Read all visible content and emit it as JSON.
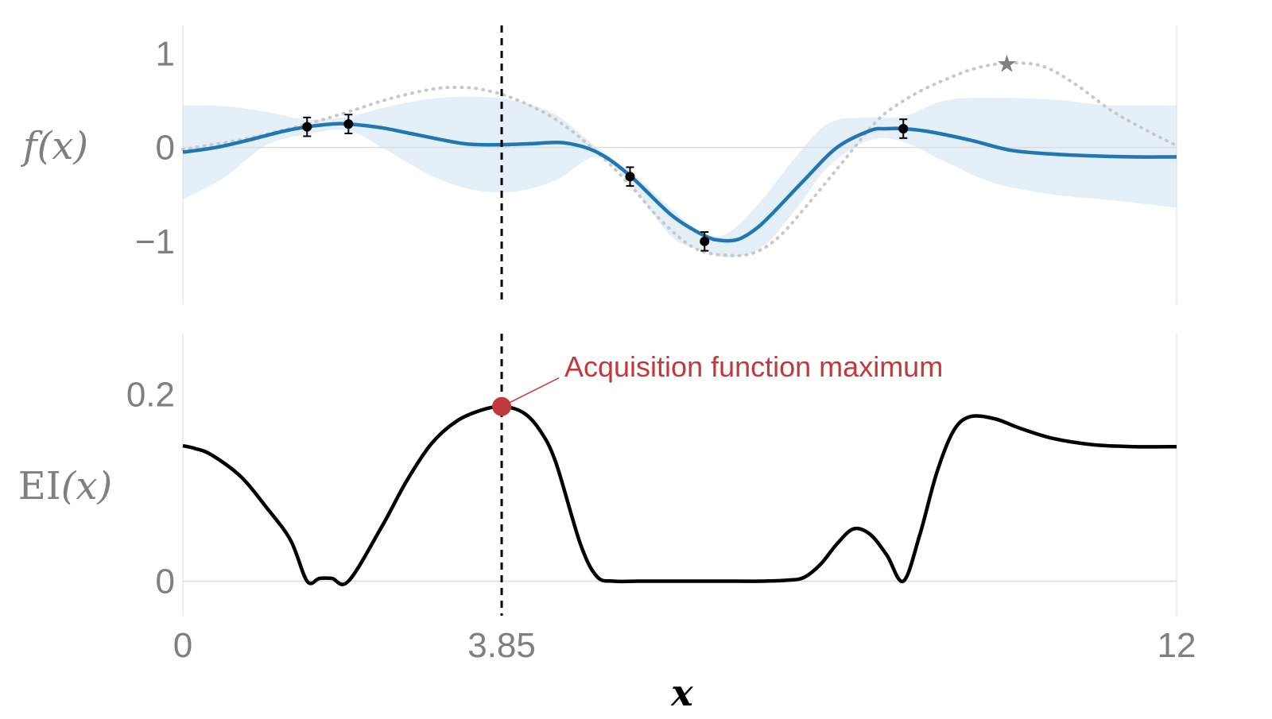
{
  "chart_data": [
    {
      "type": "line",
      "panel": "top",
      "ylabel": "f(x)",
      "xlim": [
        0,
        12
      ],
      "ylim": [
        -1.67,
        1.3
      ],
      "yticks": [
        1,
        0,
        -1
      ],
      "ytick_labels": [
        "1",
        "0",
        "−1"
      ],
      "grid": "zero line only",
      "series": [
        {
          "role": "posterior-mean",
          "color": "#1f77b4",
          "x": [
            0,
            0.4,
            0.8,
            1.2,
            1.5,
            1.8,
            2.0,
            2.4,
            2.8,
            3.4,
            3.85,
            4.2,
            4.6,
            5.0,
            5.4,
            5.9,
            6.3,
            6.5,
            6.7,
            6.9,
            7.1,
            7.5,
            7.9,
            8.3,
            8.5,
            8.7,
            9.0,
            9.5,
            10.0,
            10.5,
            11.0,
            11.5,
            12.0
          ],
          "y": [
            -0.05,
            0.0,
            0.08,
            0.17,
            0.22,
            0.25,
            0.25,
            0.21,
            0.14,
            0.04,
            0.03,
            0.04,
            0.05,
            -0.05,
            -0.3,
            -0.72,
            -0.94,
            -0.99,
            -0.98,
            -0.88,
            -0.72,
            -0.35,
            0.0,
            0.18,
            0.2,
            0.2,
            0.17,
            0.08,
            -0.03,
            -0.07,
            -0.09,
            -0.1,
            -0.1
          ]
        },
        {
          "role": "true-function",
          "color": "#c8c8c8",
          "style": "dotted",
          "x": [
            0,
            0.8,
            1.5,
            2.0,
            2.5,
            3.0,
            3.3,
            3.6,
            4.0,
            4.5,
            5.0,
            5.4,
            5.8,
            6.2,
            6.6,
            6.9,
            7.2,
            7.6,
            8.0,
            8.4,
            8.8,
            9.2,
            9.6,
            10.0,
            10.4,
            10.8,
            11.2,
            11.6,
            12.0
          ],
          "y": [
            -0.02,
            0.1,
            0.25,
            0.38,
            0.52,
            0.62,
            0.64,
            0.62,
            0.52,
            0.3,
            -0.05,
            -0.4,
            -0.8,
            -1.08,
            -1.15,
            -1.12,
            -0.95,
            -0.55,
            -0.12,
            0.3,
            0.55,
            0.72,
            0.85,
            0.9,
            0.86,
            0.66,
            0.4,
            0.2,
            0.02
          ]
        }
      ],
      "band": {
        "role": "confidence-interval",
        "color": "#c6dbef",
        "x": [
          0,
          0.5,
          1.0,
          1.5,
          2.0,
          2.5,
          3.0,
          3.5,
          4.0,
          4.5,
          5.0,
          5.4,
          5.9,
          6.3,
          6.6,
          7.0,
          7.4,
          7.8,
          8.3,
          8.7,
          9.2,
          9.8,
          10.5,
          11.2,
          12.0
        ],
        "upper": [
          0.45,
          0.44,
          0.38,
          0.3,
          0.33,
          0.44,
          0.52,
          0.54,
          0.5,
          0.35,
          0.0,
          -0.25,
          -0.65,
          -0.92,
          -0.9,
          -0.55,
          -0.1,
          0.26,
          0.32,
          0.33,
          0.5,
          0.53,
          0.51,
          0.45,
          0.45
        ],
        "lower": [
          -0.55,
          -0.32,
          0.02,
          0.14,
          0.18,
          -0.05,
          -0.3,
          -0.45,
          -0.47,
          -0.35,
          -0.1,
          -0.38,
          -0.95,
          -1.1,
          -1.17,
          -1.06,
          -0.66,
          -0.2,
          0.08,
          0.06,
          -0.15,
          -0.38,
          -0.5,
          -0.56,
          -0.64
        ]
      },
      "observations": {
        "x": [
          1.5,
          2.0,
          5.4,
          6.3,
          8.7
        ],
        "y": [
          0.22,
          0.25,
          -0.31,
          -1.0,
          0.2
        ],
        "error": [
          0.1,
          0.1,
          0.1,
          0.1,
          0.1
        ],
        "color": "#000000"
      },
      "maximum_marker": {
        "x": 9.95,
        "y": 0.89,
        "symbol": "star",
        "color": "#808080"
      }
    },
    {
      "type": "line",
      "panel": "bottom",
      "ylabel": "EI(x)",
      "xlabel": "x",
      "xlim": [
        0,
        12
      ],
      "ylim": [
        -0.037,
        0.265
      ],
      "yticks": [
        0.2,
        0
      ],
      "ytick_labels": [
        "0.2",
        "0"
      ],
      "xticks": [
        0,
        3.85,
        12
      ],
      "xtick_labels": [
        "0",
        "3.85",
        "12"
      ],
      "grid": "zero line only",
      "series": [
        {
          "role": "expected-improvement",
          "color": "#000000",
          "x": [
            0,
            0.15,
            0.35,
            0.7,
            1.0,
            1.3,
            1.5,
            1.65,
            1.8,
            2.0,
            2.4,
            2.7,
            3.0,
            3.3,
            3.6,
            3.85,
            4.1,
            4.3,
            4.5,
            4.8,
            5.0,
            5.2,
            5.5,
            6.0,
            6.5,
            7.0,
            7.3,
            7.5,
            7.7,
            7.9,
            8.1,
            8.3,
            8.5,
            8.7,
            8.9,
            9.1,
            9.3,
            9.5,
            9.8,
            10.1,
            10.5,
            11.0,
            11.5,
            12.0
          ],
          "y": [
            0.145,
            0.142,
            0.135,
            0.112,
            0.08,
            0.044,
            0.0,
            0.003,
            0.003,
            0.0,
            0.058,
            0.107,
            0.147,
            0.171,
            0.183,
            0.187,
            0.181,
            0.163,
            0.128,
            0.04,
            0.005,
            0.0,
            0.0,
            0.0,
            0.0,
            0.0,
            0.001,
            0.004,
            0.018,
            0.04,
            0.056,
            0.05,
            0.028,
            0.0,
            0.05,
            0.115,
            0.16,
            0.176,
            0.174,
            0.164,
            0.153,
            0.146,
            0.144,
            0.144
          ]
        }
      ],
      "annotations": [
        {
          "text": "Acquisition function maximum",
          "x": 3.85,
          "y": 0.187,
          "color": "#c0393b"
        }
      ]
    }
  ],
  "labels": {
    "top_ylabel": "f(x)",
    "bottom_ylabel_prefix": "EI",
    "bottom_ylabel_arg": "(x)",
    "xlabel": "x",
    "annotation": "Acquisition function maximum"
  },
  "colors": {
    "mean": "#1f77b4",
    "band": "#c6dbef",
    "truth": "#c8c8c8",
    "observation": "#000000",
    "ei": "#000000",
    "marker_max": "#c0393b",
    "annotation": "#c0393b",
    "vline": "#000000",
    "zero_line": "#dcdcdc",
    "axis_line": "#e8e8e8",
    "tick_text": "#7f7f7f",
    "star": "#808080"
  },
  "vline_x": 3.85
}
